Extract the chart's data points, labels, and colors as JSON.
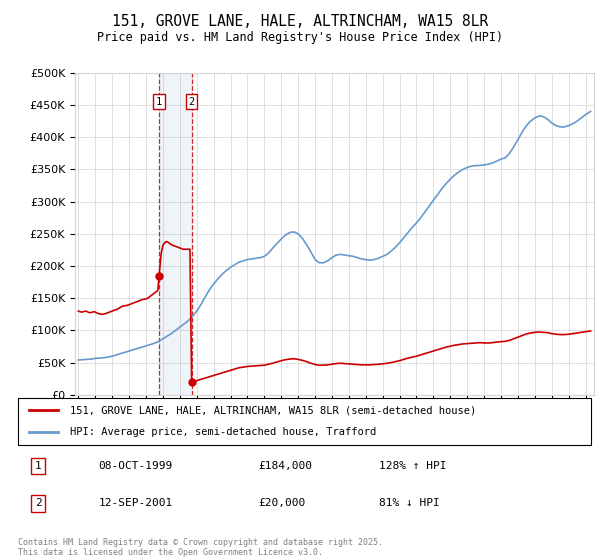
{
  "title": "151, GROVE LANE, HALE, ALTRINCHAM, WA15 8LR",
  "subtitle": "Price paid vs. HM Land Registry's House Price Index (HPI)",
  "legend_line1": "151, GROVE LANE, HALE, ALTRINCHAM, WA15 8LR (semi-detached house)",
  "legend_line2": "HPI: Average price, semi-detached house, Trafford",
  "footer": "Contains HM Land Registry data © Crown copyright and database right 2025.\nThis data is licensed under the Open Government Licence v3.0.",
  "transactions": [
    {
      "num": 1,
      "date": "08-OCT-1999",
      "price": 184000,
      "hpi_pct": "128% ↑ HPI",
      "year": 1999.77
    },
    {
      "num": 2,
      "date": "12-SEP-2001",
      "price": 20000,
      "hpi_pct": "81% ↓ HPI",
      "year": 2001.7
    }
  ],
  "red_color": "#cc0000",
  "blue_color": "#6699cc",
  "ylim": [
    0,
    500000
  ],
  "xlim": [
    1994.8,
    2025.5
  ],
  "yticks": [
    0,
    50000,
    100000,
    150000,
    200000,
    250000,
    300000,
    350000,
    400000,
    450000,
    500000
  ],
  "xticks": [
    1995,
    1996,
    1997,
    1998,
    1999,
    2000,
    2001,
    2002,
    2003,
    2004,
    2005,
    2006,
    2007,
    2008,
    2009,
    2010,
    2011,
    2012,
    2013,
    2014,
    2015,
    2016,
    2017,
    2018,
    2019,
    2020,
    2021,
    2022,
    2023,
    2024,
    2025
  ],
  "hpi_data": [
    [
      1995.0,
      54000
    ],
    [
      1995.25,
      54500
    ],
    [
      1995.5,
      55000
    ],
    [
      1995.75,
      55500
    ],
    [
      1996.0,
      56500
    ],
    [
      1996.25,
      57000
    ],
    [
      1996.5,
      57500
    ],
    [
      1996.75,
      58500
    ],
    [
      1997.0,
      60000
    ],
    [
      1997.25,
      62000
    ],
    [
      1997.5,
      64000
    ],
    [
      1997.75,
      66000
    ],
    [
      1998.0,
      68000
    ],
    [
      1998.25,
      70000
    ],
    [
      1998.5,
      72000
    ],
    [
      1998.75,
      74000
    ],
    [
      1999.0,
      76000
    ],
    [
      1999.25,
      78000
    ],
    [
      1999.5,
      80000
    ],
    [
      1999.75,
      83000
    ],
    [
      2000.0,
      87000
    ],
    [
      2000.25,
      91000
    ],
    [
      2000.5,
      95000
    ],
    [
      2000.75,
      100000
    ],
    [
      2001.0,
      105000
    ],
    [
      2001.25,
      110000
    ],
    [
      2001.5,
      115000
    ],
    [
      2001.75,
      122000
    ],
    [
      2002.0,
      130000
    ],
    [
      2002.25,
      140000
    ],
    [
      2002.5,
      152000
    ],
    [
      2002.75,
      163000
    ],
    [
      2003.0,
      172000
    ],
    [
      2003.25,
      180000
    ],
    [
      2003.5,
      187000
    ],
    [
      2003.75,
      193000
    ],
    [
      2004.0,
      198000
    ],
    [
      2004.25,
      202000
    ],
    [
      2004.5,
      206000
    ],
    [
      2004.75,
      208000
    ],
    [
      2005.0,
      210000
    ],
    [
      2005.25,
      211000
    ],
    [
      2005.5,
      212000
    ],
    [
      2005.75,
      213000
    ],
    [
      2006.0,
      215000
    ],
    [
      2006.25,
      220000
    ],
    [
      2006.5,
      228000
    ],
    [
      2006.75,
      235000
    ],
    [
      2007.0,
      242000
    ],
    [
      2007.25,
      248000
    ],
    [
      2007.5,
      252000
    ],
    [
      2007.75,
      253000
    ],
    [
      2008.0,
      250000
    ],
    [
      2008.25,
      243000
    ],
    [
      2008.5,
      233000
    ],
    [
      2008.75,
      222000
    ],
    [
      2009.0,
      210000
    ],
    [
      2009.25,
      205000
    ],
    [
      2009.5,
      205000
    ],
    [
      2009.75,
      208000
    ],
    [
      2010.0,
      213000
    ],
    [
      2010.25,
      217000
    ],
    [
      2010.5,
      218000
    ],
    [
      2010.75,
      217000
    ],
    [
      2011.0,
      216000
    ],
    [
      2011.25,
      215000
    ],
    [
      2011.5,
      213000
    ],
    [
      2011.75,
      211000
    ],
    [
      2012.0,
      210000
    ],
    [
      2012.25,
      209000
    ],
    [
      2012.5,
      210000
    ],
    [
      2012.75,
      212000
    ],
    [
      2013.0,
      215000
    ],
    [
      2013.25,
      218000
    ],
    [
      2013.5,
      223000
    ],
    [
      2013.75,
      229000
    ],
    [
      2014.0,
      236000
    ],
    [
      2014.25,
      244000
    ],
    [
      2014.5,
      252000
    ],
    [
      2014.75,
      260000
    ],
    [
      2015.0,
      267000
    ],
    [
      2015.25,
      275000
    ],
    [
      2015.5,
      284000
    ],
    [
      2015.75,
      293000
    ],
    [
      2016.0,
      302000
    ],
    [
      2016.25,
      311000
    ],
    [
      2016.5,
      320000
    ],
    [
      2016.75,
      328000
    ],
    [
      2017.0,
      335000
    ],
    [
      2017.25,
      341000
    ],
    [
      2017.5,
      346000
    ],
    [
      2017.75,
      350000
    ],
    [
      2018.0,
      353000
    ],
    [
      2018.25,
      355000
    ],
    [
      2018.5,
      356000
    ],
    [
      2018.75,
      356000
    ],
    [
      2019.0,
      357000
    ],
    [
      2019.25,
      358000
    ],
    [
      2019.5,
      360000
    ],
    [
      2019.75,
      363000
    ],
    [
      2020.0,
      366000
    ],
    [
      2020.25,
      368000
    ],
    [
      2020.5,
      375000
    ],
    [
      2020.75,
      385000
    ],
    [
      2021.0,
      396000
    ],
    [
      2021.25,
      408000
    ],
    [
      2021.5,
      418000
    ],
    [
      2021.75,
      425000
    ],
    [
      2022.0,
      430000
    ],
    [
      2022.25,
      433000
    ],
    [
      2022.5,
      432000
    ],
    [
      2022.75,
      428000
    ],
    [
      2023.0,
      422000
    ],
    [
      2023.25,
      418000
    ],
    [
      2023.5,
      416000
    ],
    [
      2023.75,
      416000
    ],
    [
      2024.0,
      418000
    ],
    [
      2024.25,
      421000
    ],
    [
      2024.5,
      425000
    ],
    [
      2024.75,
      430000
    ],
    [
      2025.0,
      435000
    ],
    [
      2025.3,
      440000
    ]
  ],
  "red_line_seg1": [
    [
      1995.0,
      130000
    ],
    [
      1995.1,
      129000
    ],
    [
      1995.2,
      128500
    ],
    [
      1995.3,
      129000
    ],
    [
      1995.4,
      130000
    ],
    [
      1995.5,
      129500
    ],
    [
      1995.6,
      128000
    ],
    [
      1995.7,
      127500
    ],
    [
      1995.8,
      128000
    ],
    [
      1995.9,
      129000
    ],
    [
      1996.0,
      128500
    ],
    [
      1996.1,
      127000
    ],
    [
      1996.2,
      126000
    ],
    [
      1996.3,
      125500
    ],
    [
      1996.4,
      125000
    ],
    [
      1996.5,
      125500
    ],
    [
      1996.6,
      126000
    ],
    [
      1996.7,
      127000
    ],
    [
      1996.8,
      128000
    ],
    [
      1996.9,
      129000
    ],
    [
      1997.0,
      130000
    ],
    [
      1997.1,
      131000
    ],
    [
      1997.2,
      132000
    ],
    [
      1997.3,
      133000
    ],
    [
      1997.4,
      134500
    ],
    [
      1997.5,
      136000
    ],
    [
      1997.6,
      137500
    ],
    [
      1997.7,
      138000
    ],
    [
      1997.8,
      138500
    ],
    [
      1997.9,
      139000
    ],
    [
      1998.0,
      140000
    ],
    [
      1998.1,
      141000
    ],
    [
      1998.2,
      142000
    ],
    [
      1998.3,
      143000
    ],
    [
      1998.4,
      144000
    ],
    [
      1998.5,
      145000
    ],
    [
      1998.6,
      146000
    ],
    [
      1998.7,
      147000
    ],
    [
      1998.8,
      148000
    ],
    [
      1998.9,
      148500
    ],
    [
      1999.0,
      149000
    ],
    [
      1999.1,
      150000
    ],
    [
      1999.2,
      152000
    ],
    [
      1999.3,
      154000
    ],
    [
      1999.4,
      156000
    ],
    [
      1999.5,
      158000
    ],
    [
      1999.6,
      160000
    ],
    [
      1999.7,
      162000
    ],
    [
      1999.77,
      184000
    ],
    [
      1999.9,
      220000
    ],
    [
      2000.0,
      232000
    ],
    [
      2000.1,
      236000
    ],
    [
      2000.2,
      238000
    ],
    [
      2000.3,
      237000
    ],
    [
      2000.4,
      235000
    ],
    [
      2000.5,
      233000
    ],
    [
      2000.6,
      232000
    ],
    [
      2000.7,
      231000
    ],
    [
      2000.8,
      230000
    ],
    [
      2000.9,
      229000
    ],
    [
      2001.0,
      228000
    ],
    [
      2001.1,
      227000
    ],
    [
      2001.2,
      226000
    ],
    [
      2001.3,
      226000
    ],
    [
      2001.4,
      226000
    ],
    [
      2001.5,
      226000
    ],
    [
      2001.6,
      226000
    ],
    [
      2001.7,
      20000
    ]
  ],
  "red_line_seg2": [
    [
      2001.7,
      20000
    ],
    [
      2001.8,
      20500
    ],
    [
      2001.9,
      21000
    ],
    [
      2002.0,
      22000
    ],
    [
      2002.25,
      24000
    ],
    [
      2002.5,
      26000
    ],
    [
      2002.75,
      28000
    ],
    [
      2003.0,
      30000
    ],
    [
      2003.25,
      32000
    ],
    [
      2003.5,
      34000
    ],
    [
      2003.75,
      36000
    ],
    [
      2004.0,
      38000
    ],
    [
      2004.25,
      40000
    ],
    [
      2004.5,
      42000
    ],
    [
      2004.75,
      43000
    ],
    [
      2005.0,
      44000
    ],
    [
      2005.25,
      44500
    ],
    [
      2005.5,
      45000
    ],
    [
      2005.75,
      45500
    ],
    [
      2006.0,
      46000
    ],
    [
      2006.25,
      47500
    ],
    [
      2006.5,
      49000
    ],
    [
      2006.75,
      51000
    ],
    [
      2007.0,
      53000
    ],
    [
      2007.25,
      54500
    ],
    [
      2007.5,
      55500
    ],
    [
      2007.75,
      56000
    ],
    [
      2008.0,
      55000
    ],
    [
      2008.25,
      53500
    ],
    [
      2008.5,
      51500
    ],
    [
      2008.75,
      49000
    ],
    [
      2009.0,
      47000
    ],
    [
      2009.25,
      46000
    ],
    [
      2009.5,
      46000
    ],
    [
      2009.75,
      46500
    ],
    [
      2010.0,
      47500
    ],
    [
      2010.25,
      48500
    ],
    [
      2010.5,
      49000
    ],
    [
      2010.75,
      48500
    ],
    [
      2011.0,
      48000
    ],
    [
      2011.25,
      47500
    ],
    [
      2011.5,
      47000
    ],
    [
      2011.75,
      46500
    ],
    [
      2012.0,
      46500
    ],
    [
      2012.25,
      46500
    ],
    [
      2012.5,
      47000
    ],
    [
      2012.75,
      47500
    ],
    [
      2013.0,
      48000
    ],
    [
      2013.25,
      49000
    ],
    [
      2013.5,
      50000
    ],
    [
      2013.75,
      51500
    ],
    [
      2014.0,
      53000
    ],
    [
      2014.25,
      55000
    ],
    [
      2014.5,
      57000
    ],
    [
      2014.75,
      58500
    ],
    [
      2015.0,
      60000
    ],
    [
      2015.25,
      62000
    ],
    [
      2015.5,
      64000
    ],
    [
      2015.75,
      66000
    ],
    [
      2016.0,
      68000
    ],
    [
      2016.25,
      70000
    ],
    [
      2016.5,
      72000
    ],
    [
      2016.75,
      74000
    ],
    [
      2017.0,
      75500
    ],
    [
      2017.25,
      77000
    ],
    [
      2017.5,
      78000
    ],
    [
      2017.75,
      79000
    ],
    [
      2018.0,
      79500
    ],
    [
      2018.25,
      80000
    ],
    [
      2018.5,
      80500
    ],
    [
      2018.75,
      81000
    ],
    [
      2019.0,
      80500
    ],
    [
      2019.25,
      80500
    ],
    [
      2019.5,
      81000
    ],
    [
      2019.75,
      82000
    ],
    [
      2020.0,
      82500
    ],
    [
      2020.25,
      83000
    ],
    [
      2020.5,
      84500
    ],
    [
      2020.75,
      87000
    ],
    [
      2021.0,
      89500
    ],
    [
      2021.25,
      92000
    ],
    [
      2021.5,
      94500
    ],
    [
      2021.75,
      96000
    ],
    [
      2022.0,
      97000
    ],
    [
      2022.25,
      97500
    ],
    [
      2022.5,
      97000
    ],
    [
      2022.75,
      96500
    ],
    [
      2023.0,
      95000
    ],
    [
      2023.25,
      94000
    ],
    [
      2023.5,
      93500
    ],
    [
      2023.75,
      93500
    ],
    [
      2024.0,
      94000
    ],
    [
      2024.25,
      95000
    ],
    [
      2024.5,
      96000
    ],
    [
      2024.75,
      97000
    ],
    [
      2025.0,
      98000
    ],
    [
      2025.3,
      99000
    ]
  ]
}
